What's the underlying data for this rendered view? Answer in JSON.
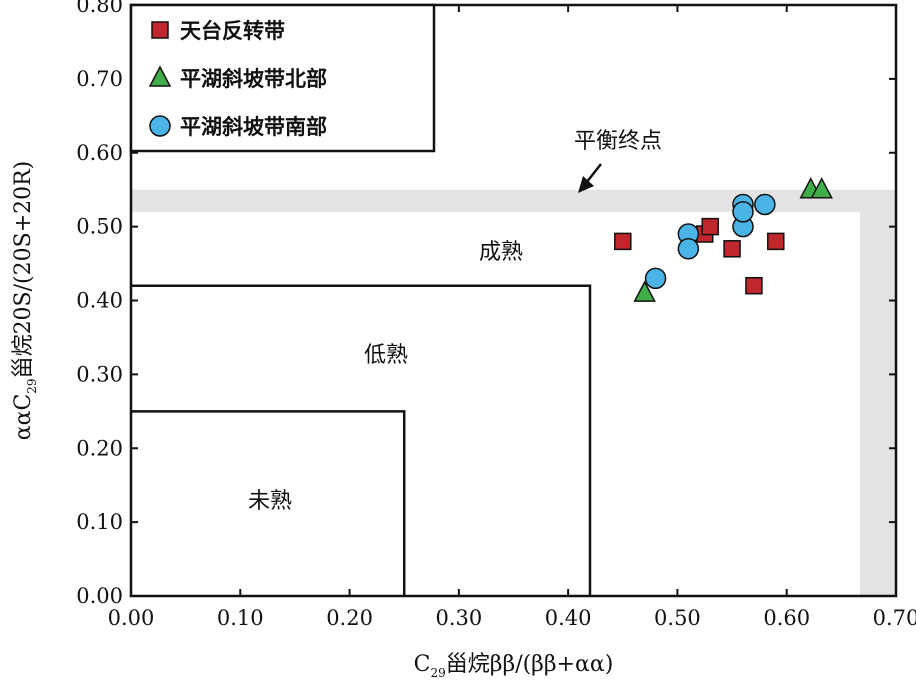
{
  "chart_data": {
    "type": "scatter",
    "xlabel": {
      "pre": "C",
      "sub": "29",
      "post": "甾烷ββ/(ββ+αα)"
    },
    "ylabel": {
      "pre": "ααC",
      "sub": "29",
      "post": "甾烷20S/(20S+20R)"
    },
    "xlim": [
      0.0,
      0.7
    ],
    "ylim": [
      0.0,
      0.8
    ],
    "xticks": [
      "0.00",
      "0.10",
      "0.20",
      "0.30",
      "0.40",
      "0.50",
      "0.60",
      "0.70"
    ],
    "yticks": [
      "0.00",
      "0.10",
      "0.20",
      "0.30",
      "0.40",
      "0.50",
      "0.60",
      "0.70",
      "0.80"
    ],
    "grid": false,
    "legend_position": "top-left",
    "zones": [
      {
        "label": "未熟",
        "x_max": 0.25,
        "y_max": 0.25
      },
      {
        "label": "低熟",
        "x_max": 0.42,
        "y_max": 0.42
      },
      {
        "label": "成熟"
      }
    ],
    "equilibrium_band": {
      "label": "平衡终点",
      "y_range": [
        0.52,
        0.55
      ],
      "x_range": [
        0.667,
        0.7
      ],
      "color": "#e3e3e3"
    },
    "series": [
      {
        "name": "天台反转带",
        "marker": "square",
        "color": "#c0272d",
        "points": [
          {
            "x": 0.45,
            "y": 0.48
          },
          {
            "x": 0.525,
            "y": 0.49
          },
          {
            "x": 0.53,
            "y": 0.5
          },
          {
            "x": 0.55,
            "y": 0.47
          },
          {
            "x": 0.57,
            "y": 0.42
          },
          {
            "x": 0.59,
            "y": 0.48
          }
        ]
      },
      {
        "name": "平湖斜坡带北部",
        "marker": "triangle",
        "color": "#3fae49",
        "points": [
          {
            "x": 0.47,
            "y": 0.41
          },
          {
            "x": 0.622,
            "y": 0.55
          },
          {
            "x": 0.632,
            "y": 0.55
          }
        ]
      },
      {
        "name": "平湖斜坡带南部",
        "marker": "circle",
        "color": "#4ab4e6",
        "points": [
          {
            "x": 0.48,
            "y": 0.43
          },
          {
            "x": 0.51,
            "y": 0.49
          },
          {
            "x": 0.51,
            "y": 0.47
          },
          {
            "x": 0.56,
            "y": 0.53
          },
          {
            "x": 0.56,
            "y": 0.5
          },
          {
            "x": 0.56,
            "y": 0.52
          },
          {
            "x": 0.58,
            "y": 0.53
          }
        ]
      }
    ]
  }
}
